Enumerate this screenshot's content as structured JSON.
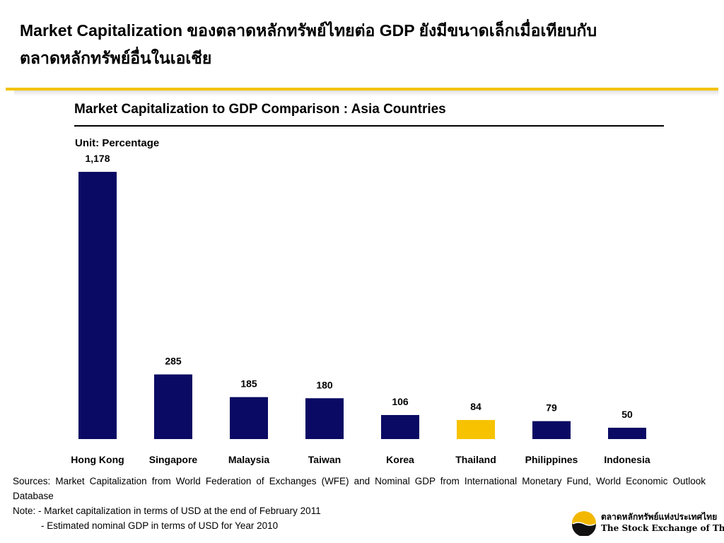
{
  "slide": {
    "title": "Market Capitalization ของตลาดหลักทรัพย์ไทยต่อ GDP ยังมีขนาดเล็กเมื่อเทียบกับตลาดหลักทรัพย์อื่นในเอเชีย"
  },
  "chart_data": {
    "type": "bar",
    "title": "Market Capitalization to GDP Comparison : Asia Countries",
    "unit": "Unit: Percentage",
    "categories": [
      "Hong Kong",
      "Singapore",
      "Malaysia",
      "Taiwan",
      "Korea",
      "Thailand",
      "Philippines",
      "Indonesia"
    ],
    "values": [
      1178,
      285,
      185,
      180,
      106,
      84,
      79,
      50
    ],
    "value_labels": [
      "1,178",
      "285",
      "185",
      "180",
      "106",
      "84",
      "79",
      "50"
    ],
    "colors": {
      "default": "#0a0a64",
      "highlight": "#f7c200"
    },
    "highlight_category": "Thailand",
    "ylim": [
      0,
      1200
    ],
    "grid": false,
    "legend": "none"
  },
  "footer": {
    "sources": "Sources: Market Capitalization from World Federation of Exchanges (WFE) and Nominal GDP from International Monetary Fund, World Economic Outlook Database",
    "note_line1": "Note: - Market capitalization in terms of USD at the end of February 2011",
    "note_line2": "- Estimated nominal GDP in terms of USD for Year 2010"
  },
  "logo": {
    "thai": "ตลาดหลักทรัพย์แห่งประเทศไทย",
    "english": "The Stock Exchange of Thailand",
    "icon": "set-logo-icon"
  }
}
